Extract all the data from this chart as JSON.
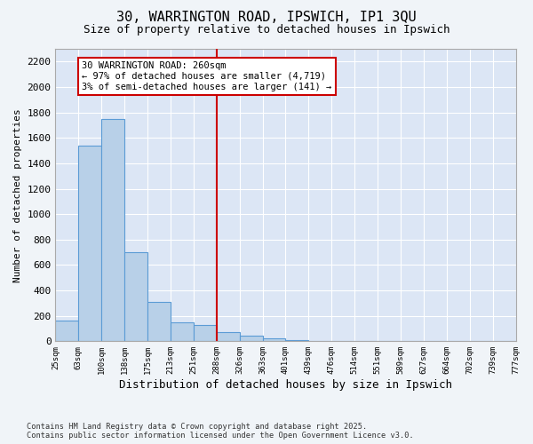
{
  "title_line1": "30, WARRINGTON ROAD, IPSWICH, IP1 3QU",
  "title_line2": "Size of property relative to detached houses in Ipswich",
  "xlabel": "Distribution of detached houses by size in Ipswich",
  "ylabel": "Number of detached properties",
  "bar_color": "#b8d0e8",
  "bar_edge_color": "#5b9bd5",
  "bg_color": "#dce6f5",
  "grid_color": "#ffffff",
  "tick_labels": [
    "25sqm",
    "63sqm",
    "100sqm",
    "138sqm",
    "175sqm",
    "213sqm",
    "251sqm",
    "288sqm",
    "326sqm",
    "363sqm",
    "401sqm",
    "439sqm",
    "476sqm",
    "514sqm",
    "551sqm",
    "589sqm",
    "627sqm",
    "664sqm",
    "702sqm",
    "739sqm",
    "777sqm"
  ],
  "values": [
    160,
    1540,
    1750,
    700,
    310,
    150,
    130,
    70,
    45,
    20,
    12,
    0,
    0,
    0,
    0,
    0,
    0,
    0,
    0,
    0
  ],
  "ylim": [
    0,
    2300
  ],
  "yticks": [
    0,
    200,
    400,
    600,
    800,
    1000,
    1200,
    1400,
    1600,
    1800,
    2000,
    2200
  ],
  "vline_pos": 6.5,
  "vline_color": "#cc0000",
  "annotation_text": "30 WARRINGTON ROAD: 260sqm\n← 97% of detached houses are smaller (4,719)\n3% of semi-detached houses are larger (141) →",
  "annotation_box_color": "#cc0000",
  "footer_line1": "Contains HM Land Registry data © Crown copyright and database right 2025.",
  "footer_line2": "Contains public sector information licensed under the Open Government Licence v3.0."
}
